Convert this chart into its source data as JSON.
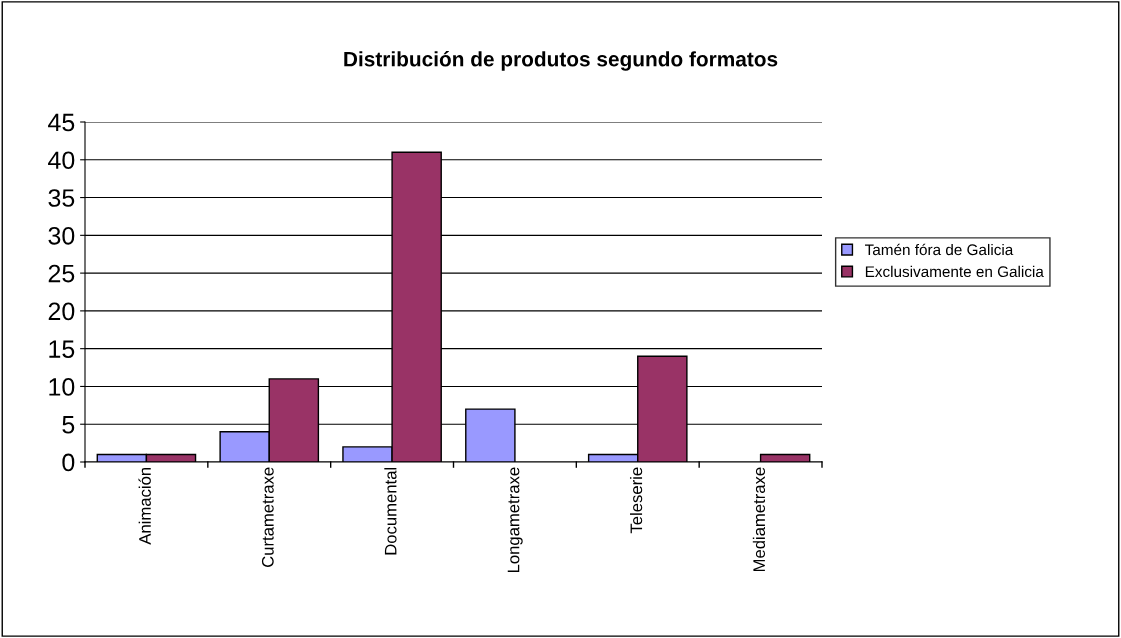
{
  "chart_data": {
    "type": "bar",
    "title": "Distribución de produtos segundo formatos",
    "categories": [
      "Animación",
      "Curtametraxe",
      "Documental",
      "Longametraxe",
      "Teleserie",
      "Mediametraxe"
    ],
    "series": [
      {
        "name": "Tamén fóra de Galicia",
        "color": "#9999ff",
        "values": [
          1,
          4,
          2,
          7,
          1,
          null
        ]
      },
      {
        "name": "Exclusivamente en Galicia",
        "color": "#993366",
        "values": [
          1,
          11,
          41,
          null,
          14,
          1
        ]
      }
    ],
    "ylim": [
      0,
      45
    ],
    "yticks": [
      0,
      5,
      10,
      15,
      20,
      25,
      30,
      35,
      40,
      45
    ],
    "grid": "y",
    "legend": "right"
  }
}
